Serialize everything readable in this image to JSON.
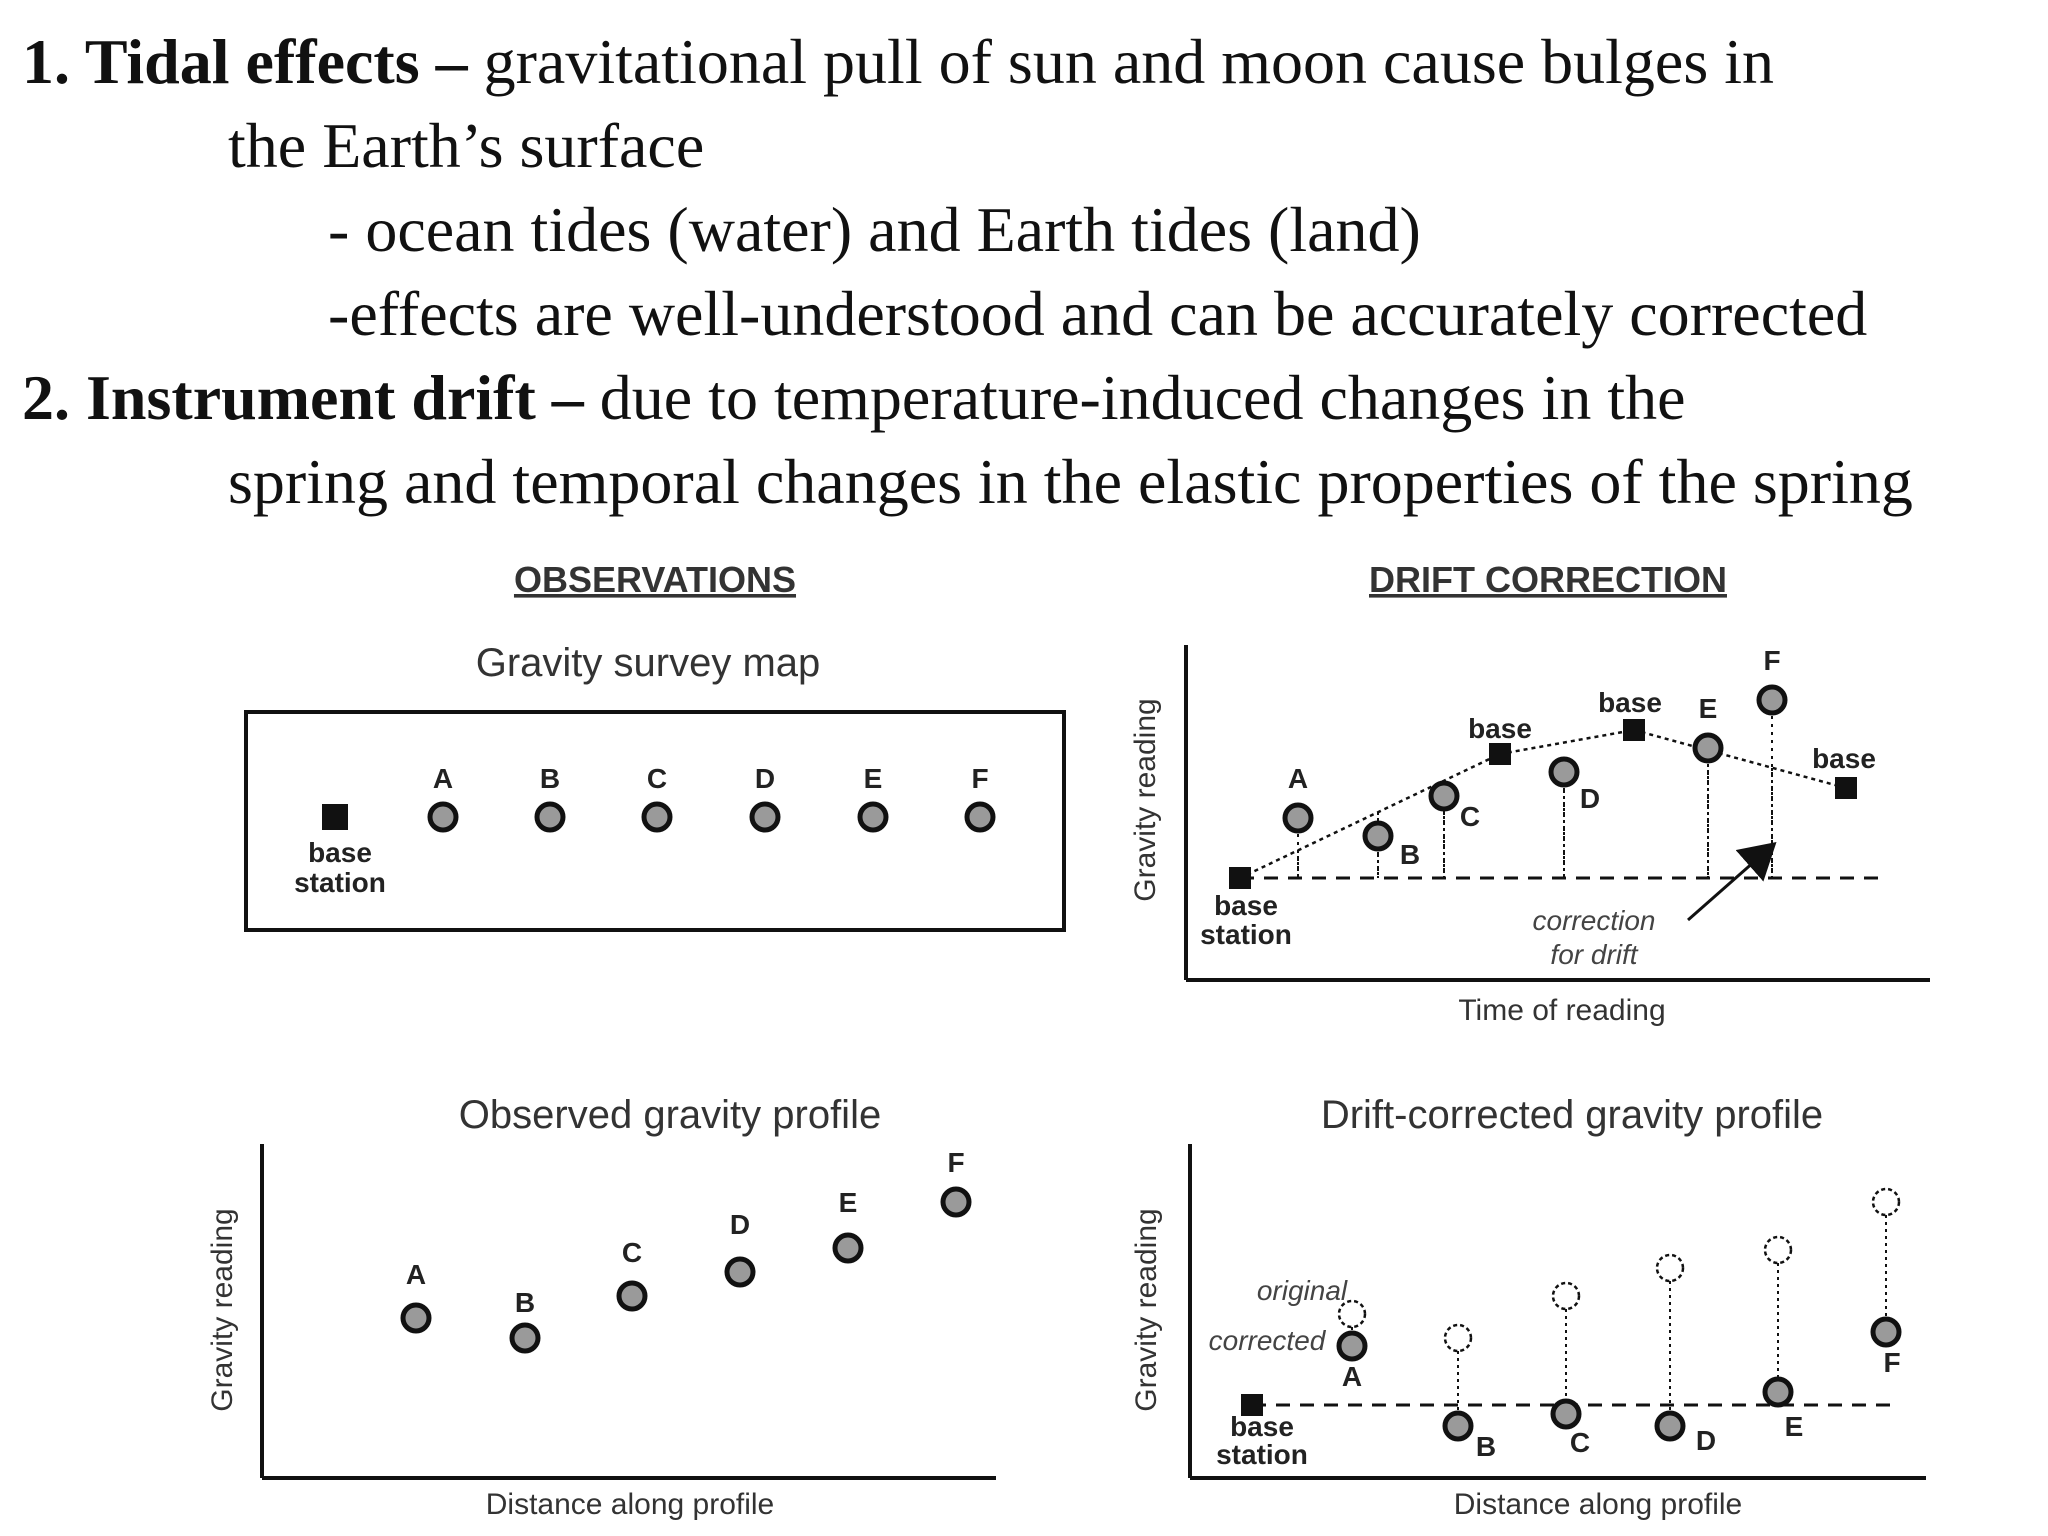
{
  "text_lines": [
    {
      "bold": "1. Tidal effects –",
      "rest": " gravitational pull of sun and moon cause bulges in"
    },
    {
      "bold": "",
      "rest": "the Earth’s surface"
    },
    {
      "bold": "",
      "rest": "- ocean tides (water) and Earth tides (land)"
    },
    {
      "bold": "",
      "rest": "-effects are well-understood and can be accurately corrected"
    },
    {
      "bold": "2. Instrument drift –",
      "rest": " due to temperature-induced changes in the"
    },
    {
      "bold": "",
      "rest": "spring and temporal changes in the elastic properties of the spring"
    }
  ],
  "figure": {
    "headings": {
      "observations": "OBSERVATIONS",
      "drift_correction": "DRIFT CORRECTION"
    },
    "map": {
      "title": "Gravity survey map",
      "base_label": [
        "base",
        "station"
      ],
      "stations": [
        "A",
        "B",
        "C",
        "D",
        "E",
        "F"
      ]
    },
    "drift_panel": {
      "ylabel": "Gravity reading",
      "xlabel": "Time of reading",
      "base_label": "base",
      "base_station_label": [
        "base",
        "station"
      ],
      "correction_label": [
        "correction",
        "for drift"
      ]
    },
    "observed_profile": {
      "title": "Observed gravity profile",
      "ylabel": "Gravity reading",
      "xlabel": "Distance along profile"
    },
    "corrected_profile": {
      "title": "Drift-corrected gravity profile",
      "ylabel": "Gravity reading",
      "xlabel": "Distance along profile",
      "original_label": "original",
      "corrected_label": "corrected",
      "base_station_label": [
        "base",
        "station"
      ]
    }
  },
  "colors": {
    "marker_fill": "#9a9a9a",
    "marker_stroke": "#111111",
    "ink": "#111111"
  }
}
